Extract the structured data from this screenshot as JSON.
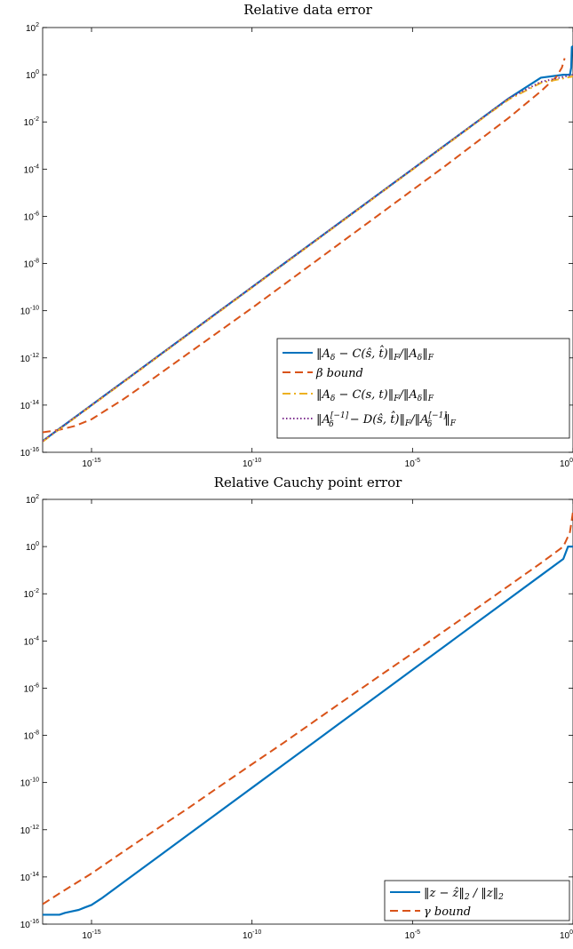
{
  "chart_data": [
    {
      "type": "line",
      "title": "Relative data error",
      "xscale": "log",
      "yscale": "log",
      "xlim": [
        3e-17,
        1
      ],
      "ylim": [
        1e-16,
        100
      ],
      "xticks": [
        1e-15,
        1e-10,
        1e-05,
        1
      ],
      "xtick_labels": [
        {
          "base": "10",
          "exp": "-15"
        },
        {
          "base": "10",
          "exp": "-10"
        },
        {
          "base": "10",
          "exp": "-5"
        },
        {
          "base": "10",
          "exp": "0"
        }
      ],
      "yticks": [
        1e-16,
        1e-14,
        1e-12,
        1e-10,
        1e-08,
        1e-06,
        0.0001,
        0.01,
        1,
        100
      ],
      "ytick_labels": [
        {
          "base": "10",
          "exp": "-16"
        },
        {
          "base": "10",
          "exp": "-14"
        },
        {
          "base": "10",
          "exp": "-12"
        },
        {
          "base": "10",
          "exp": "-10"
        },
        {
          "base": "10",
          "exp": "-8"
        },
        {
          "base": "10",
          "exp": "-6"
        },
        {
          "base": "10",
          "exp": "-4"
        },
        {
          "base": "10",
          "exp": "-2"
        },
        {
          "base": "10",
          "exp": "0"
        },
        {
          "base": "10",
          "exp": "2"
        }
      ],
      "grid": false,
      "legend_position": "lower-right",
      "series": [
        {
          "name": "‖A_δ − C(ŝ,t̂)‖_F / ‖A_δ‖_F",
          "color": "#0072BD",
          "dash": "solid",
          "x": [
            3e-17,
            1e-16,
            1e-15,
            1e-14,
            1e-13,
            1e-12,
            1e-11,
            1e-10,
            1e-09,
            1e-08,
            1e-07,
            1e-06,
            1e-05,
            0.0001,
            0.001,
            0.01,
            0.1,
            0.5,
            0.8,
            0.88,
            0.92,
            1
          ],
          "y": [
            3e-16,
            1e-15,
            1e-14,
            1e-13,
            1e-12,
            1e-11,
            1e-10,
            1e-09,
            1e-08,
            1e-07,
            1e-06,
            1e-05,
            0.0001,
            0.001,
            0.01,
            0.1,
            0.75,
            1,
            1,
            2,
            15,
            16
          ]
        },
        {
          "name": "β bound",
          "color": "#D95319",
          "dash": "dashed",
          "x": [
            3e-17,
            6e-17,
            1e-16,
            3e-16,
            1e-15,
            1e-14,
            1e-13,
            1e-12,
            1e-11,
            1e-10,
            1e-09,
            1e-08,
            1e-07,
            1e-06,
            1e-05,
            0.0001,
            0.001,
            0.01,
            0.1,
            0.3,
            0.45,
            0.55
          ],
          "y": [
            7e-16,
            8e-16,
            9e-16,
            1.3e-15,
            2.5e-15,
            1.8e-14,
            1.6e-13,
            1.5e-12,
            1.4e-11,
            1.3e-10,
            1.3e-09,
            1.3e-08,
            1.3e-07,
            1.3e-06,
            1.3e-05,
            0.00013,
            0.0014,
            0.015,
            0.2,
            0.8,
            2,
            5
          ]
        },
        {
          "name": "‖A_δ − C(s,t)‖_F / ‖A_δ‖_F",
          "color": "#EDB120",
          "dash": "dashdot",
          "x": [
            3e-17,
            1e-16,
            1e-15,
            1e-14,
            1e-13,
            1e-12,
            1e-11,
            1e-10,
            1e-09,
            1e-08,
            1e-07,
            1e-06,
            1e-05,
            0.0001,
            0.001,
            0.01,
            0.1,
            1
          ],
          "y": [
            2.8e-16,
            9.5e-16,
            9.5e-15,
            9.5e-14,
            9.5e-13,
            9.5e-12,
            9.5e-11,
            9.5e-10,
            9.5e-09,
            9.5e-08,
            9.5e-07,
            9.5e-06,
            9.5e-05,
            0.00095,
            0.0095,
            0.09,
            0.45,
            0.85
          ]
        },
        {
          "name": "‖A_δ^[−1] − D(ŝ,t̂)‖_F / ‖A_δ^[−1]‖_F",
          "color": "#7E2F8E",
          "dash": "dotted",
          "x": [
            3e-17,
            1e-16,
            1e-15,
            1e-14,
            1e-13,
            1e-12,
            1e-11,
            1e-10,
            1e-09,
            1e-08,
            1e-07,
            1e-06,
            1e-05,
            0.0001,
            0.001,
            0.01,
            0.1,
            1
          ],
          "y": [
            3e-16,
            1e-15,
            1e-14,
            1e-13,
            1e-12,
            1e-11,
            1e-10,
            1e-09,
            1e-08,
            1e-07,
            1e-06,
            1e-05,
            0.0001,
            0.001,
            0.01,
            0.1,
            0.5,
            1
          ]
        }
      ]
    },
    {
      "type": "line",
      "title": "Relative Cauchy point error",
      "xscale": "log",
      "yscale": "log",
      "xlim": [
        3e-17,
        1
      ],
      "ylim": [
        1e-16,
        100
      ],
      "xticks": [
        1e-15,
        1e-10,
        1e-05,
        1
      ],
      "xtick_labels": [
        {
          "base": "10",
          "exp": "-15"
        },
        {
          "base": "10",
          "exp": "-10"
        },
        {
          "base": "10",
          "exp": "-5"
        },
        {
          "base": "10",
          "exp": "0"
        }
      ],
      "yticks": [
        1e-16,
        1e-14,
        1e-12,
        1e-10,
        1e-08,
        1e-06,
        0.0001,
        0.01,
        1,
        100
      ],
      "ytick_labels": [
        {
          "base": "10",
          "exp": "-16"
        },
        {
          "base": "10",
          "exp": "-14"
        },
        {
          "base": "10",
          "exp": "-12"
        },
        {
          "base": "10",
          "exp": "-10"
        },
        {
          "base": "10",
          "exp": "-8"
        },
        {
          "base": "10",
          "exp": "-6"
        },
        {
          "base": "10",
          "exp": "-4"
        },
        {
          "base": "10",
          "exp": "-2"
        },
        {
          "base": "10",
          "exp": "0"
        },
        {
          "base": "10",
          "exp": "2"
        }
      ],
      "grid": false,
      "legend_position": "lower-right",
      "series": [
        {
          "name": "‖z − ẑ‖₂ / ‖z‖₂",
          "color": "#0072BD",
          "dash": "solid",
          "x": [
            3e-17,
            1e-16,
            1.5e-16,
            2.5e-16,
            4e-16,
            6e-16,
            1e-15,
            2e-15,
            1e-14,
            1e-13,
            1e-12,
            1e-11,
            1e-10,
            1e-09,
            1e-08,
            1e-07,
            1e-06,
            1e-05,
            0.0001,
            0.001,
            0.01,
            0.1,
            0.5,
            0.7,
            1
          ],
          "y": [
            2.5e-16,
            2.5e-16,
            3e-16,
            3.5e-16,
            4e-16,
            5e-16,
            6.5e-16,
            1.2e-15,
            6e-15,
            6e-14,
            6e-13,
            6e-12,
            6e-11,
            6e-10,
            6e-09,
            6e-08,
            6e-07,
            6e-06,
            6e-05,
            0.0006,
            0.006,
            0.06,
            0.3,
            1,
            1
          ]
        },
        {
          "name": "γ bound",
          "color": "#D95319",
          "dash": "dashed",
          "x": [
            3e-17,
            1e-16,
            1e-15,
            1e-14,
            1e-13,
            1e-12,
            1e-11,
            1e-10,
            1e-09,
            1e-08,
            1e-07,
            1e-06,
            1e-05,
            0.0001,
            0.001,
            0.01,
            0.1,
            0.5,
            0.8,
            1
          ],
          "y": [
            7e-16,
            2e-15,
            1.4e-14,
            1.2e-13,
            1e-12,
            8e-12,
            7e-11,
            6e-10,
            5e-09,
            4.5e-08,
            4e-07,
            3.5e-06,
            3e-05,
            0.00027,
            0.0024,
            0.022,
            0.2,
            1,
            4,
            30
          ]
        }
      ]
    }
  ]
}
